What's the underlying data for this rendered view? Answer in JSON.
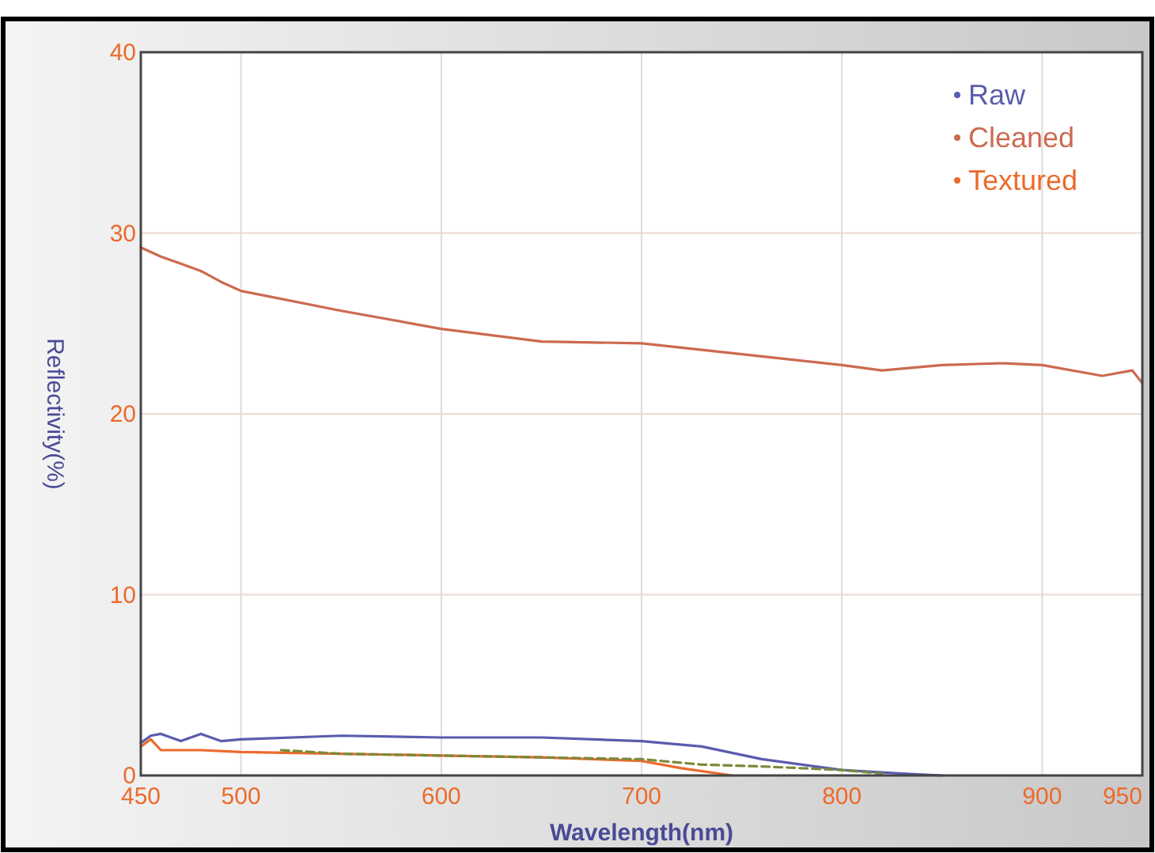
{
  "chart_data": {
    "type": "line",
    "xlabel": "Wavelength(nm)",
    "ylabel": "Reflectivity(%)",
    "xlim": [
      450,
      950
    ],
    "ylim": [
      0,
      40
    ],
    "xticks": [
      450,
      500,
      600,
      700,
      800,
      900,
      950
    ],
    "yticks": [
      0,
      10,
      20,
      30,
      40
    ],
    "grid": true,
    "legend": "top right",
    "marker": "none",
    "series": [
      {
        "name": "Raw",
        "color": "#5a5cae",
        "x": [
          450,
          455,
          460,
          470,
          480,
          490,
          500,
          550,
          600,
          650,
          700,
          730,
          760,
          800,
          830,
          850
        ],
        "values": [
          1.8,
          2.2,
          2.3,
          1.9,
          2.3,
          1.9,
          2.0,
          2.2,
          2.1,
          2.1,
          1.9,
          1.6,
          0.9,
          0.3,
          0.1,
          0
        ]
      },
      {
        "name": "Cleaned",
        "color": "#cc6a50",
        "x": [
          450,
          460,
          470,
          480,
          490,
          500,
          550,
          600,
          650,
          700,
          750,
          800,
          820,
          850,
          880,
          900,
          930,
          945,
          950
        ],
        "values": [
          29.2,
          28.7,
          28.3,
          27.9,
          27.3,
          26.8,
          25.7,
          24.7,
          24.0,
          23.9,
          23.3,
          22.7,
          22.4,
          22.7,
          22.8,
          22.7,
          22.1,
          22.4,
          21.7
        ]
      },
      {
        "name": "Textured",
        "color": "#ec6a2c",
        "x": [
          450,
          455,
          460,
          480,
          500,
          550,
          600,
          650,
          700,
          720,
          745
        ],
        "values": [
          1.6,
          2.0,
          1.4,
          1.4,
          1.3,
          1.2,
          1.1,
          1.0,
          0.8,
          0.4,
          0
        ]
      },
      {
        "color": "#7a8a3a",
        "line_style": "dashed",
        "x": [
          520,
          550,
          600,
          650,
          700,
          730,
          760,
          800,
          820
        ],
        "values": [
          1.4,
          1.2,
          1.1,
          1.0,
          0.9,
          0.6,
          0.5,
          0.3,
          0.1
        ]
      }
    ]
  }
}
